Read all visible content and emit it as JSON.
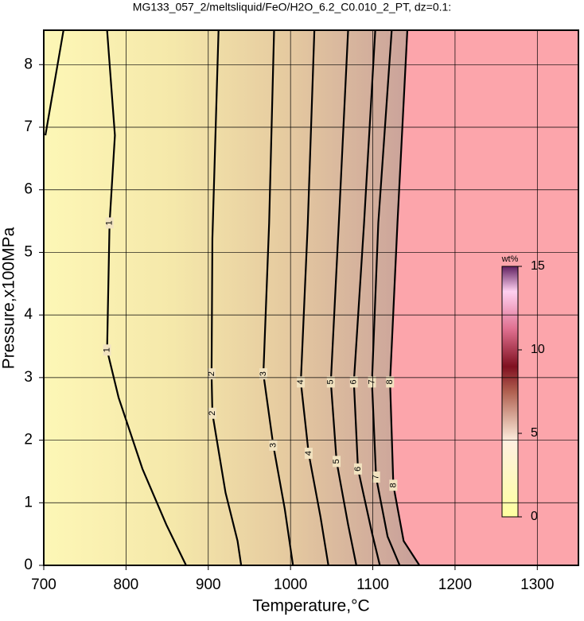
{
  "chart_data": {
    "type": "contour",
    "title": "MG133_057_2/meltsliquid/FeO/H2O_6.2_C0.010_2_PT, dz=0.1:",
    "xlabel": "Temperature,°C",
    "ylabel": "Pressure,x100MPa",
    "xlim": [
      700,
      1350
    ],
    "ylim": [
      0,
      8.55
    ],
    "xticks": [
      700,
      800,
      900,
      1000,
      1100,
      1200,
      1300
    ],
    "yticks": [
      0,
      1,
      2,
      3,
      4,
      5,
      6,
      7,
      8
    ],
    "grid": true,
    "colorbar": {
      "label": "wt%",
      "lim": [
        0,
        15
      ],
      "ticks": [
        0,
        5,
        10,
        15
      ]
    },
    "contours": [
      {
        "level": 1,
        "x": [
          777,
          786.5,
          780,
          777,
          791,
          820,
          849,
          873
        ],
        "y": [
          8.55,
          6.87,
          5.47,
          3.44,
          2.68,
          1.54,
          0.65,
          0
        ]
      },
      {
        "level": 1,
        "x": [
          724,
          702
        ],
        "y": [
          8.55,
          6.87
        ]
      },
      {
        "level": 2,
        "x": [
          912.5,
          905,
          904,
          905,
          921,
          935.6,
          940
        ],
        "y": [
          8.55,
          5.22,
          3.06,
          2.43,
          1.16,
          0.39,
          0
        ]
      },
      {
        "level": 3,
        "x": [
          980,
          974,
          967,
          979,
          993,
          1003
        ],
        "y": [
          8.55,
          5.47,
          3.06,
          1.92,
          0.9,
          0
        ]
      },
      {
        "level": 4,
        "x": [
          1029,
          1021,
          1012.5,
          1022,
          1036.5,
          1046
        ],
        "y": [
          8.55,
          5.47,
          2.93,
          1.79,
          0.77,
          0
        ]
      },
      {
        "level": 5,
        "x": [
          1070,
          1058.7,
          1049,
          1056,
          1070,
          1080
        ],
        "y": [
          8.55,
          5.47,
          2.93,
          1.66,
          0.65,
          0
        ]
      },
      {
        "level": 6,
        "x": [
          1103,
          1089.4,
          1077,
          1082,
          1099,
          1108.6
        ],
        "y": [
          8.55,
          5.47,
          2.93,
          1.54,
          0.52,
          0
        ]
      },
      {
        "level": 7,
        "x": [
          1123,
          1106.7,
          1099,
          1104,
          1118,
          1132.7
        ],
        "y": [
          8.55,
          5.47,
          2.93,
          1.41,
          0.46,
          0
        ]
      },
      {
        "level": 8,
        "x": [
          1142,
          1130,
          1121,
          1125,
          1137.5,
          1156.7
        ],
        "y": [
          8.55,
          5.47,
          2.93,
          1.28,
          0.39,
          0
        ]
      }
    ]
  }
}
